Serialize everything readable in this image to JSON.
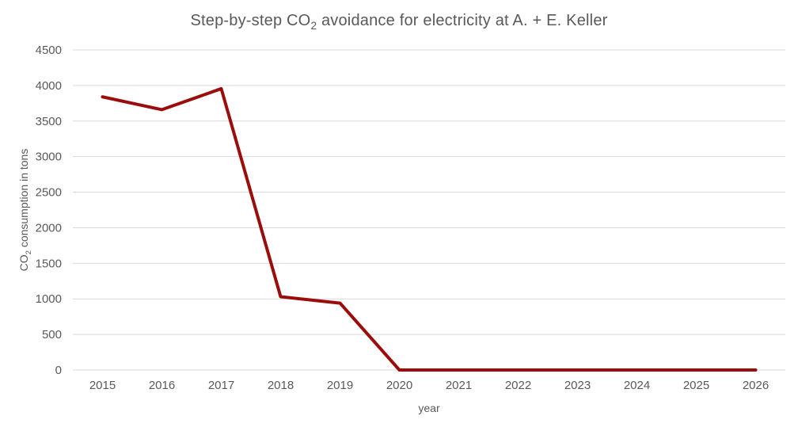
{
  "title": {
    "prefix": "Step-by-step CO",
    "subscript": "2",
    "suffix": " avoidance for electricity at A. + E. Keller"
  },
  "axes": {
    "y_title": {
      "prefix": "CO",
      "subscript": "2",
      "suffix": " consumption in tons"
    },
    "x_title": "year"
  },
  "chart_data": {
    "type": "line",
    "title": "Step-by-step CO2 avoidance for electricity at A. + E. Keller",
    "xlabel": "year",
    "ylabel": "CO2 consumption in tons",
    "categories": [
      "2015",
      "2016",
      "2017",
      "2018",
      "2019",
      "2020",
      "2021",
      "2022",
      "2023",
      "2024",
      "2025",
      "2026"
    ],
    "values": [
      3840,
      3660,
      3955,
      1030,
      940,
      0,
      0,
      0,
      0,
      0,
      0,
      0
    ],
    "ylim": [
      0,
      4500
    ],
    "y_tick_step": 500,
    "y_tick_labels": [
      "0",
      "500",
      "1000",
      "1500",
      "2000",
      "2500",
      "3000",
      "3500",
      "4000",
      "4500"
    ],
    "grid": "horizontal",
    "legend": "none",
    "colors": {
      "line": "#9B0D0B",
      "grid": "#D9D9D9",
      "text": "#595959"
    }
  }
}
